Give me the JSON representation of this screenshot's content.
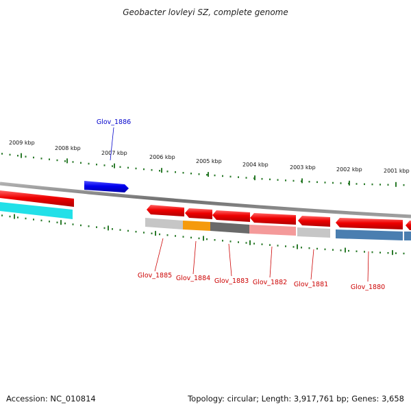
{
  "title": "Geobacter lovleyi SZ, complete genome",
  "footer": {
    "accession": "Accession: NC_010814",
    "summary": "Topology: circular; Length: 3,917,761 bp; Genes: 3,658"
  },
  "ticks": [
    "2009 kbp",
    "2008 kbp",
    "2007 kbp",
    "2006 kbp",
    "2005 kbp",
    "2004 kbp",
    "2003 kbp",
    "2002 kbp",
    "2001 kbp"
  ],
  "colors": {
    "forward_gene": "#0000ee",
    "reverse_gene": "#ee0000",
    "label_blue": "#0000cc",
    "label_red": "#cc0000",
    "backbone": "#808080",
    "tick": "#2a7a2a"
  },
  "genes": [
    {
      "id": "fwd-gene",
      "label": "",
      "strand": "forward",
      "color": "#1010ee"
    },
    {
      "id": "left-red",
      "label": "",
      "strand": "reverse",
      "color": "#ee1111"
    },
    {
      "id": "Glov_1885",
      "label": "Glov_1885",
      "strand": "reverse",
      "color": "#ee1111"
    },
    {
      "id": "Glov_1884",
      "label": "Glov_1884",
      "strand": "reverse",
      "color": "#ee1111"
    },
    {
      "id": "Glov_1883",
      "label": "Glov_1883",
      "strand": "reverse",
      "color": "#ee1111"
    },
    {
      "id": "Glov_1882",
      "label": "Glov_1882",
      "strand": "reverse",
      "color": "#ee1111"
    },
    {
      "id": "Glov_1881",
      "label": "Glov_1881",
      "strand": "reverse",
      "color": "#ee1111"
    },
    {
      "id": "Glov_1880",
      "label": "Glov_1880",
      "strand": "reverse",
      "color": "#ee1111"
    },
    {
      "id": "right-red",
      "label": "",
      "strand": "reverse",
      "color": "#ee1111"
    }
  ],
  "forward_label": "Glov_1886",
  "cog_bands": [
    {
      "id": "cog-left",
      "color": "#22e0e8"
    },
    {
      "id": "cog-1885",
      "color": "#c6c6c6"
    },
    {
      "id": "cog-1884",
      "color": "#f59a0c"
    },
    {
      "id": "cog-1883",
      "color": "#6a6a6a"
    },
    {
      "id": "cog-1882",
      "color": "#f49a9a"
    },
    {
      "id": "cog-1881",
      "color": "#c6c6c6"
    },
    {
      "id": "cog-1880",
      "color": "#4a7eb0"
    },
    {
      "id": "cog-right",
      "color": "#4a7eb0"
    }
  ]
}
